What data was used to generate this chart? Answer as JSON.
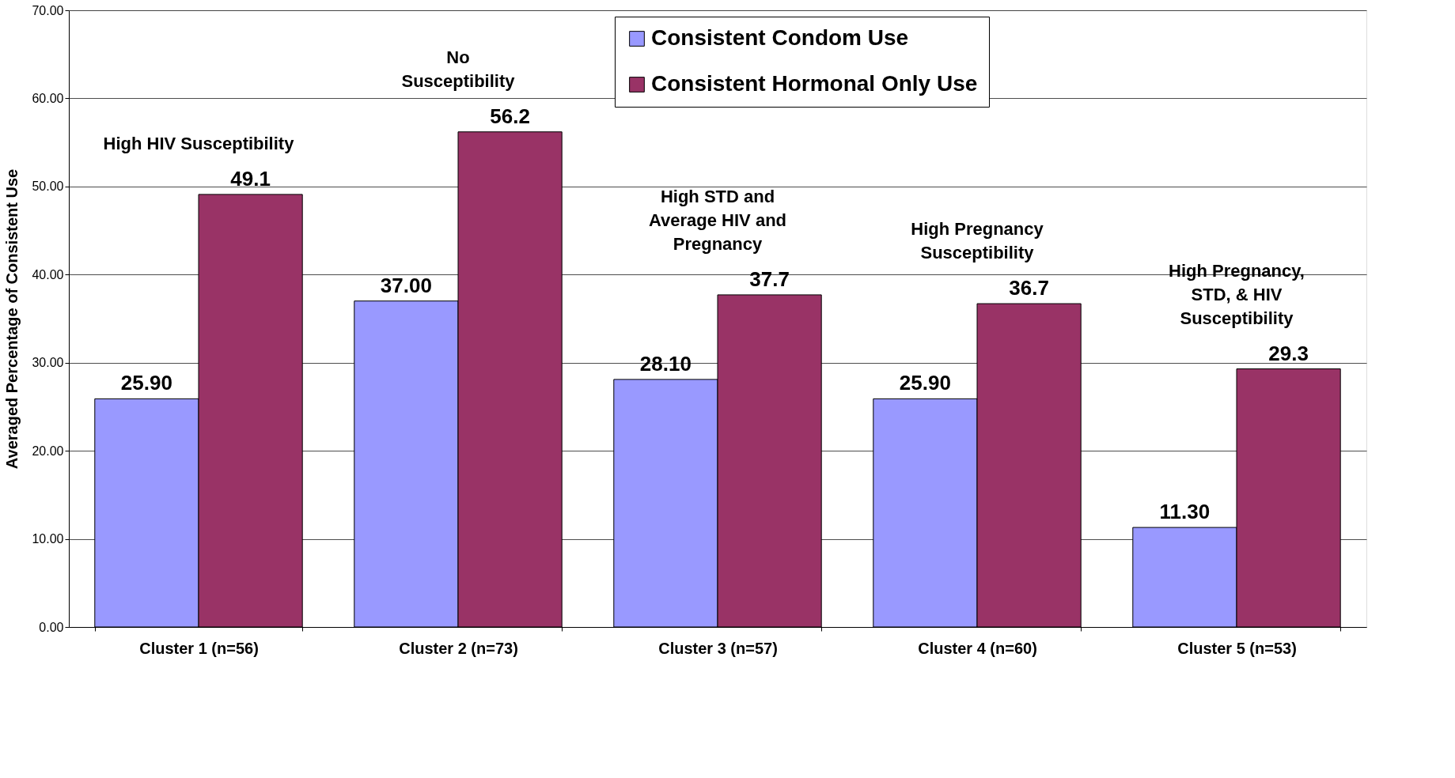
{
  "chart_data": {
    "type": "bar",
    "ylabel": "Averaged Percentage of Consistent Use",
    "categories": [
      "Cluster 1 (n=56)",
      "Cluster 2 (n=73)",
      "Cluster 3 (n=57)",
      "Cluster 4 (n=60)",
      "Cluster 5 (n=53)"
    ],
    "series": [
      {
        "name": "Consistent Condom Use",
        "color": "#9999ff",
        "values": [
          25.9,
          37.0,
          28.1,
          25.9,
          11.3
        ],
        "value_labels": [
          "25.90",
          "37.00",
          "28.10",
          "25.90",
          "11.30"
        ]
      },
      {
        "name": "Consistent Hormonal Only Use",
        "color": "#993366",
        "values": [
          49.1,
          56.2,
          37.7,
          36.7,
          29.3
        ],
        "value_labels": [
          "49.1",
          "56.2",
          "37.7",
          "36.7",
          "29.3"
        ]
      }
    ],
    "ylim": [
      0,
      70
    ],
    "yticks": [
      {
        "value": 0,
        "label": "0.00"
      },
      {
        "value": 10,
        "label": "10.00"
      },
      {
        "value": 20,
        "label": "20.00"
      },
      {
        "value": 30,
        "label": "30.00"
      },
      {
        "value": 40,
        "label": "40.00"
      },
      {
        "value": 50,
        "label": "50.00"
      },
      {
        "value": 60,
        "label": "60.00"
      },
      {
        "value": 70,
        "label": "70.00"
      }
    ],
    "grid": "y",
    "legend": "top right",
    "annotations": [
      "High HIV Susceptibility",
      "No\nSusceptibility",
      "High STD and\nAverage HIV and\nPregnancy",
      "High Pregnancy\nSusceptibility",
      "High Pregnancy,\nSTD, & HIV\nSusceptibility"
    ]
  }
}
